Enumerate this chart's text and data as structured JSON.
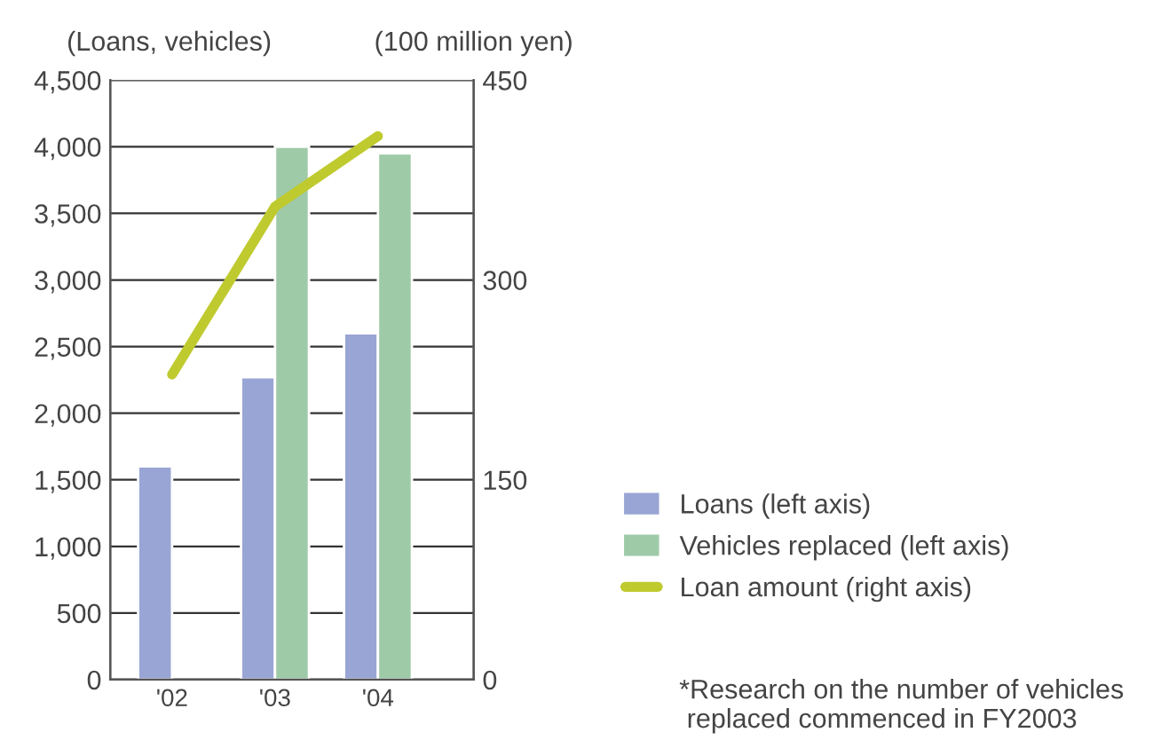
{
  "chart_data": {
    "type": "bar",
    "categories": [
      "'02",
      "'03",
      "'04"
    ],
    "series": [
      {
        "name": "Loans (left axis)",
        "color": "#99a5d4",
        "values": [
          1600,
          2270,
          2600
        ]
      },
      {
        "name": "Vehicles replaced (left axis)",
        "color": "#9ecaa8",
        "values": [
          null,
          4000,
          3950
        ]
      },
      {
        "name": "Loan amount (right axis)",
        "type": "line",
        "axis": "y2",
        "color": "#bfca2f",
        "values": [
          229,
          355,
          408
        ]
      }
    ],
    "ylabel": "(Loans, vehicles)",
    "y2label": "(100 million yen)",
    "ylim": [
      0,
      4500
    ],
    "yticks": [
      {
        "value": 0,
        "label": "0"
      },
      {
        "value": 500,
        "label": "500"
      },
      {
        "value": 1000,
        "label": "1,000"
      },
      {
        "value": 1500,
        "label": "1,500"
      },
      {
        "value": 2000,
        "label": "2,000"
      },
      {
        "value": 2500,
        "label": "2,500"
      },
      {
        "value": 3000,
        "label": "3,000"
      },
      {
        "value": 3500,
        "label": "3,500"
      },
      {
        "value": 4000,
        "label": "4,000"
      },
      {
        "value": 4500,
        "label": "4,500"
      }
    ],
    "y2lim": [
      0,
      450
    ],
    "y2ticks": [
      0,
      150,
      300,
      450
    ],
    "grid": "y",
    "legend": "right",
    "marker": "none",
    "line_style": "solid",
    "annotations": [
      "*Research on the number of vehicles\n replaced commenced in FY2003"
    ]
  }
}
